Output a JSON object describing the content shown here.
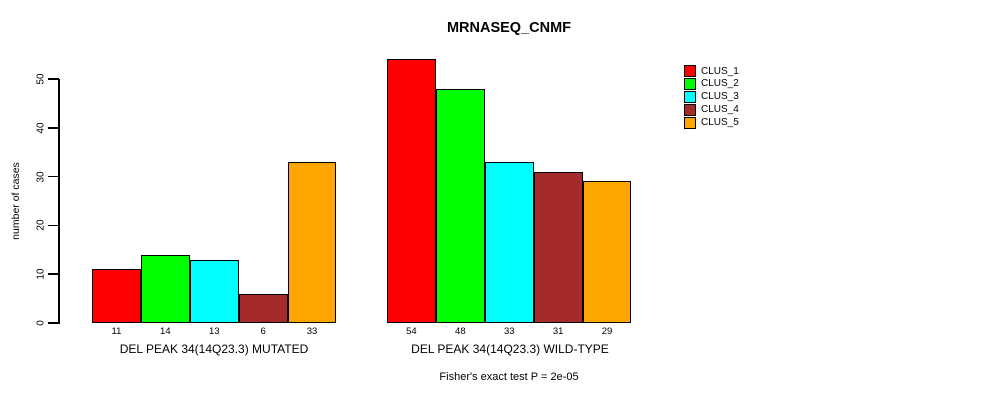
{
  "chart_data": {
    "type": "bar",
    "title": "MRNASEQ_CNMF",
    "ylabel": "number of cases",
    "xlabel": "",
    "ylim": [
      0,
      50
    ],
    "yticks": [
      0,
      10,
      20,
      30,
      40,
      50
    ],
    "grid": false,
    "legend_position": "top-right",
    "categories": [
      "DEL PEAK 34(14Q23.3) MUTATED",
      "DEL PEAK 34(14Q23.3) WILD-TYPE"
    ],
    "series": [
      {
        "name": "CLUS_1",
        "color": "#ff0000",
        "values": [
          11,
          54
        ]
      },
      {
        "name": "CLUS_2",
        "color": "#00ff00",
        "values": [
          14,
          48
        ]
      },
      {
        "name": "CLUS_3",
        "color": "#00ffff",
        "values": [
          13,
          33
        ]
      },
      {
        "name": "CLUS_4",
        "color": "#a52a2a",
        "values": [
          6,
          31
        ]
      },
      {
        "name": "CLUS_5",
        "color": "#ffa500",
        "values": [
          33,
          29
        ]
      }
    ],
    "bar_value_labels": [
      [
        "11",
        "14",
        "13",
        "6",
        "33"
      ],
      [
        "54",
        "48",
        "33",
        "31",
        "29"
      ]
    ],
    "annotation": "Fisher's exact test P = 2e-05"
  }
}
